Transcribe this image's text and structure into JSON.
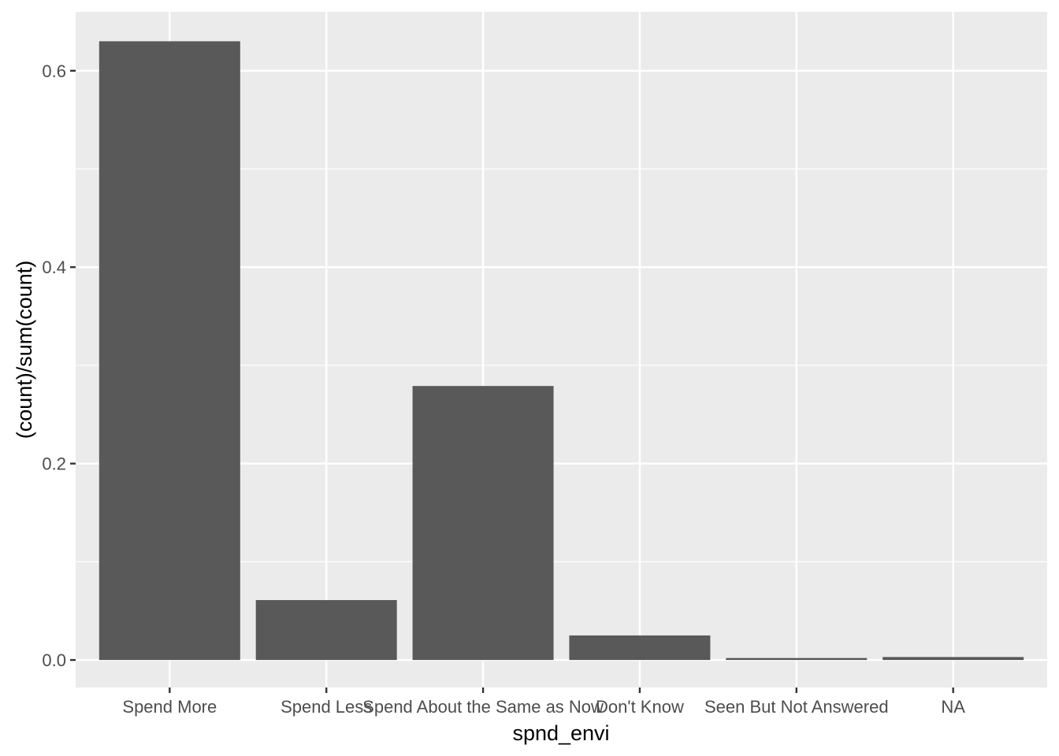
{
  "chart_data": {
    "type": "bar",
    "title": "",
    "xlabel": "spnd_envi",
    "ylabel": "(count)/sum(count)",
    "categories": [
      "Spend More",
      "Spend Less",
      "Spend About the Same as Now",
      "Don't  Know",
      "Seen But Not Answered",
      "NA"
    ],
    "values": [
      0.63,
      0.061,
      0.279,
      0.025,
      0.002,
      0.003
    ],
    "ylim": [
      -0.028,
      0.66
    ],
    "yticks": [
      0.0,
      0.2,
      0.4,
      0.6
    ],
    "ytick_labels": [
      "0.0",
      "0.2",
      "0.4",
      "0.6"
    ],
    "grid": true,
    "colors": {
      "panel_background": "#ebebeb",
      "grid": "#ffffff",
      "bar": "#595959",
      "tick_text": "#4d4d4d",
      "tick_mark": "#333333",
      "title_text": "#000000"
    }
  }
}
